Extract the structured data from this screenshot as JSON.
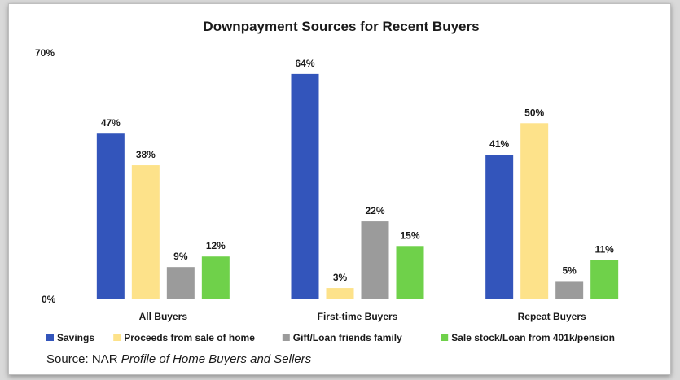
{
  "chart_data": {
    "type": "bar",
    "title": "Downpayment Sources for Recent Buyers",
    "categories": [
      "All Buyers",
      "First-time Buyers",
      "Repeat Buyers"
    ],
    "series": [
      {
        "name": "Savings",
        "color": "#3355bb",
        "values": [
          47,
          64,
          41
        ],
        "labels": [
          "47%",
          "64%",
          "41%"
        ]
      },
      {
        "name": "Proceeds from sale of home",
        "color": "#fde28a",
        "values": [
          38,
          3,
          50
        ],
        "labels": [
          "38%",
          "3%",
          "50%"
        ]
      },
      {
        "name": "Gift/Loan friends family",
        "color": "#9b9b9b",
        "values": [
          9,
          22,
          5
        ],
        "labels": [
          "9%",
          "22%",
          "5%"
        ]
      },
      {
        "name": "Sale stock/Loan from 401k/pension",
        "color": "#6fd14a",
        "values": [
          12,
          15,
          11
        ],
        "labels": [
          "12%",
          "15%",
          "11%"
        ]
      }
    ],
    "ylim": [
      0,
      70
    ],
    "yticks": [
      "0%",
      "70%"
    ],
    "xlabel": "",
    "ylabel": "",
    "grid": false,
    "legend_position": "bottom"
  },
  "source": {
    "prefix": "Source: NAR ",
    "title": "Profile of Home Buyers and Sellers"
  }
}
